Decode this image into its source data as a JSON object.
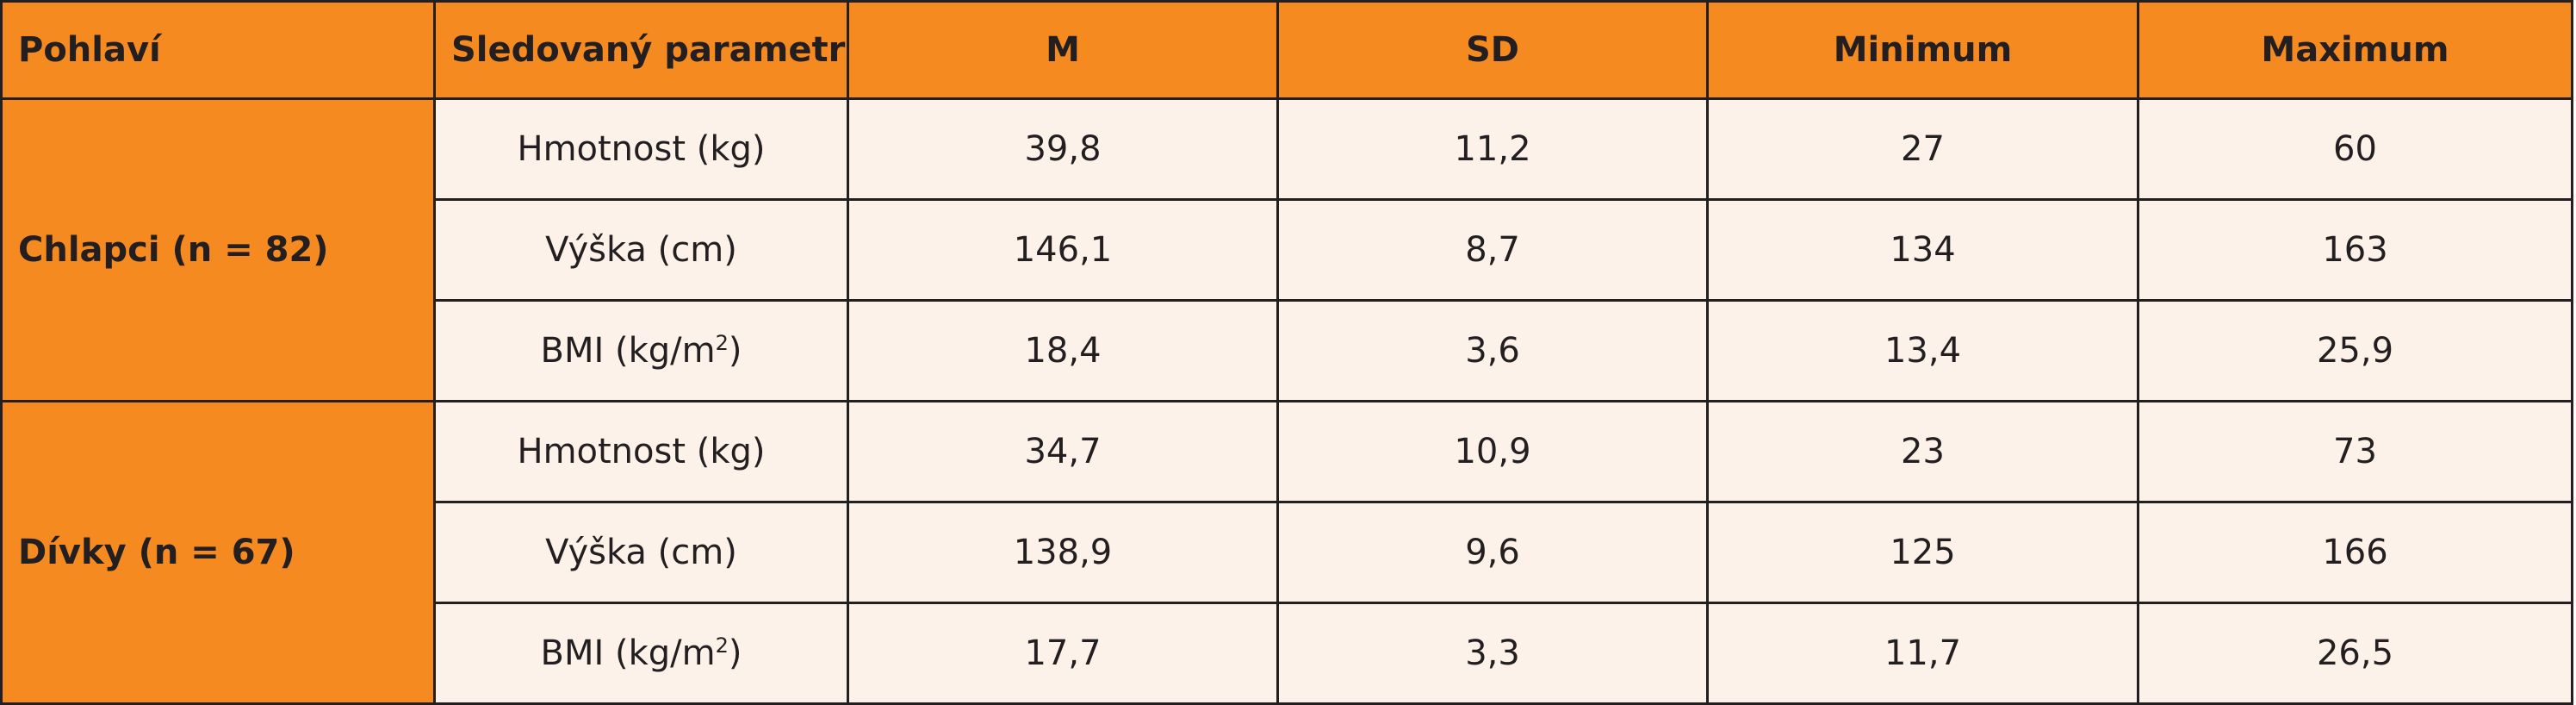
{
  "header": {
    "col1": "Pohlaví",
    "col2": "Sledovaný parametr",
    "col3": "M",
    "col4": "SD",
    "col5": "Minimum",
    "col6": "Maximum"
  },
  "groups": [
    {
      "label": "Chlapci (n = 82)",
      "rows": [
        {
          "param": "Hmotnost (kg)",
          "m": "39,8",
          "sd": "11,2",
          "min": "27",
          "max": "60"
        },
        {
          "param": "Výška (cm)",
          "m": "146,1",
          "sd": "8,7",
          "min": "134",
          "max": "163"
        },
        {
          "param_prefix": "BMI (kg/m",
          "param_sup": "2",
          "param_suffix": ")",
          "m": "18,4",
          "sd": "3,6",
          "min": "13,4",
          "max": "25,9"
        }
      ]
    },
    {
      "label": "Dívky (n = 67)",
      "rows": [
        {
          "param": "Hmotnost (kg)",
          "m": "34,7",
          "sd": "10,9",
          "min": "23",
          "max": "73"
        },
        {
          "param": "Výška (cm)",
          "m": "138,9",
          "sd": "9,6",
          "min": "125",
          "max": "166"
        },
        {
          "param_prefix": "BMI (kg/m",
          "param_sup": "2",
          "param_suffix": ")",
          "m": "17,7",
          "sd": "3,3",
          "min": "11,7",
          "max": "26,5"
        }
      ]
    }
  ],
  "colors": {
    "header_bg": "#f58b20",
    "cell_bg": "#fdf2e9",
    "border": "#231f20"
  }
}
